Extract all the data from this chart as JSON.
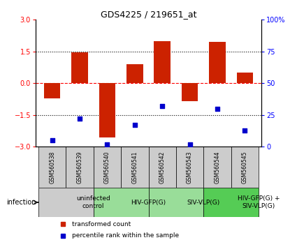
{
  "title": "GDS4225 / 219651_at",
  "samples": [
    "GSM560538",
    "GSM560539",
    "GSM560540",
    "GSM560541",
    "GSM560542",
    "GSM560543",
    "GSM560544",
    "GSM560545"
  ],
  "transformed_count": [
    -0.7,
    1.45,
    -2.55,
    0.9,
    2.0,
    -0.85,
    1.95,
    0.5
  ],
  "percentile_rank": [
    5,
    22,
    2,
    17,
    32,
    2,
    30,
    13
  ],
  "ylim_left": [
    -3,
    3
  ],
  "ylim_right": [
    0,
    100
  ],
  "bar_color": "#cc2200",
  "dot_color": "#0000cc",
  "yticks_left": [
    -3,
    -1.5,
    0,
    1.5,
    3
  ],
  "yticks_right": [
    0,
    25,
    50,
    75,
    100
  ],
  "groups": [
    {
      "label": "uninfected\ncontrol",
      "start": 0,
      "end": 2,
      "color": "#cccccc"
    },
    {
      "label": "HIV-GFP(G)",
      "start": 2,
      "end": 4,
      "color": "#99dd99"
    },
    {
      "label": "SIV-VLP(G)",
      "start": 4,
      "end": 6,
      "color": "#99dd99"
    },
    {
      "label": "HIV-GFP(G) +\nSIV-VLP(G)",
      "start": 6,
      "end": 8,
      "color": "#55cc55"
    }
  ],
  "legend_items": [
    {
      "color": "#cc2200",
      "label": "transformed count"
    },
    {
      "color": "#0000cc",
      "label": "percentile rank within the sample"
    }
  ],
  "infection_label": "infection",
  "sample_box_color": "#cccccc",
  "title_fontsize": 9,
  "tick_fontsize": 7,
  "sample_fontsize": 5.5,
  "group_fontsize": 6.5,
  "legend_fontsize": 6.5
}
